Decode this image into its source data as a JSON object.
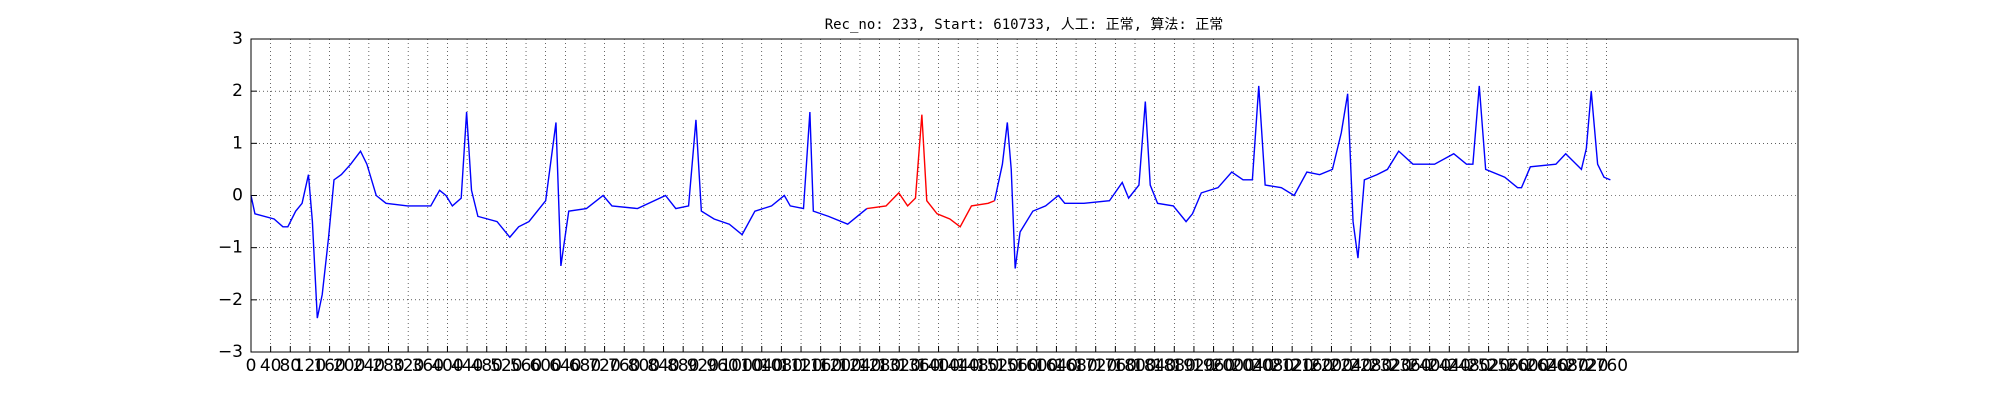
{
  "chart_data": {
    "type": "line",
    "title": "Rec_no: 233, Start: 610733, 人工: 正常, 算法: 正常",
    "x": [
      0,
      8,
      47,
      65,
      75,
      91,
      104,
      117,
      125,
      135,
      145,
      158,
      169,
      184,
      203,
      223,
      236,
      255,
      275,
      319,
      366,
      384,
      397,
      410,
      428,
      439,
      449,
      462,
      501,
      527,
      545,
      566,
      600,
      621,
      631,
      647,
      683,
      717,
      735,
      787,
      844,
      865,
      891,
      906,
      917,
      943,
      974,
      1000,
      1026,
      1060,
      1086,
      1098,
      1125,
      1138,
      1145,
      1176,
      1215,
      1254,
      1293,
      1319,
      1337,
      1353,
      1366,
      1376,
      1397,
      1423,
      1444,
      1467,
      1501,
      1514,
      1530,
      1540,
      1548,
      1556,
      1566,
      1592,
      1618,
      1644,
      1657,
      1696,
      1748,
      1774,
      1787,
      1808,
      1821,
      1831,
      1846,
      1878,
      1904,
      1917,
      1935,
      1969,
      1997,
      2020,
      2039,
      2052,
      2065,
      2098,
      2124,
      2150,
      2176,
      2202,
      2220,
      2233,
      2244,
      2254,
      2267,
      2293,
      2314,
      2337,
      2366,
      2410,
      2449,
      2475,
      2488,
      2501,
      2514,
      2553,
      2579,
      2587,
      2605,
      2657,
      2677,
      2709,
      2719,
      2729,
      2742,
      2755,
      2768
    ],
    "series": [
      {
        "color": "#0000ff",
        "values": [
          0,
          -0.35,
          -0.45,
          -0.6,
          -0.6,
          -0.3,
          -0.15,
          0.4,
          -0.5,
          -2.35,
          -1.9,
          -0.8,
          0.3,
          0.4,
          0.6,
          0.85,
          0.6,
          0,
          -0.15,
          -0.2,
          -0.2,
          0.1,
          0,
          -0.2,
          -0.05,
          1.6,
          0.1,
          -0.4,
          -0.5,
          -0.8,
          -0.6,
          -0.5,
          -0.1,
          1.4,
          -1.35,
          -0.3,
          -0.25,
          0,
          -0.2,
          -0.25,
          0,
          -0.25,
          -0.2,
          1.45,
          -0.3,
          -0.45,
          -0.55,
          -0.75,
          -0.3,
          -0.2,
          0,
          -0.2,
          -0.25,
          1.6,
          -0.3,
          -0.4,
          -0.55,
          -0.25,
          null,
          null,
          null,
          null,
          null,
          null,
          null,
          null,
          null,
          null,
          null,
          -0.1,
          0.6,
          1.4,
          0.5,
          -1.4,
          -0.7,
          -0.3,
          -0.2,
          0,
          -0.15,
          -0.15,
          -0.1,
          0.25,
          -0.05,
          0.2,
          1.8,
          0.2,
          -0.15,
          -0.2,
          -0.5,
          -0.35,
          0.05,
          0.15,
          0.45,
          0.3,
          0.3,
          2.1,
          0.2,
          0.15,
          0,
          0.45,
          0.4,
          0.5,
          1.2,
          1.95,
          -0.5,
          -1.2,
          0.3,
          0.4,
          0.5,
          0.85,
          0.6,
          0.6,
          0.8,
          0.6,
          0.6,
          2.1,
          0.5,
          0.35,
          0.15,
          0.15,
          0.55,
          0.6,
          0.8,
          0.5,
          0.9,
          2.0,
          0.6,
          0.35,
          0.3
        ]
      },
      {
        "color": "#ff0000",
        "values": [
          null,
          null,
          null,
          null,
          null,
          null,
          null,
          null,
          null,
          null,
          null,
          null,
          null,
          null,
          null,
          null,
          null,
          null,
          null,
          null,
          null,
          null,
          null,
          null,
          null,
          null,
          null,
          null,
          null,
          null,
          null,
          null,
          null,
          null,
          null,
          null,
          null,
          null,
          null,
          null,
          null,
          null,
          null,
          null,
          null,
          null,
          null,
          null,
          null,
          null,
          null,
          null,
          null,
          null,
          null,
          null,
          null,
          -0.25,
          -0.2,
          0.05,
          -0.2,
          -0.05,
          1.55,
          -0.1,
          -0.35,
          -0.45,
          -0.6,
          -0.2,
          -0.15,
          -0.1,
          null,
          null,
          null,
          null,
          null,
          null,
          null,
          null,
          null,
          null,
          null,
          null,
          null,
          null,
          null,
          null,
          null,
          null,
          null,
          null,
          null,
          null,
          null,
          null,
          null,
          null,
          null,
          null,
          null,
          null,
          null,
          null,
          null,
          null,
          null,
          null,
          null,
          null,
          null,
          null,
          null,
          null,
          null,
          null,
          null,
          null,
          null,
          null,
          null,
          null,
          null,
          null,
          null,
          null,
          null,
          null,
          null,
          null,
          null
        ]
      }
    ],
    "xlim": [
      0,
      3150
    ],
    "xticks": [
      0,
      40,
      80,
      120,
      160,
      200,
      240,
      280,
      320,
      360,
      400,
      440,
      480,
      520,
      560,
      600,
      640,
      680,
      720,
      760,
      800,
      840,
      880,
      920,
      960,
      1000,
      1040,
      1080,
      1120,
      1160,
      1200,
      1240,
      1280,
      1320,
      1360,
      1400,
      1440,
      1480,
      1520,
      1560,
      1600,
      1640,
      1680,
      1720,
      1760,
      1800,
      1840,
      1880,
      1920,
      1960,
      2000,
      2040,
      2080,
      2120,
      2160,
      2200,
      2240,
      2280,
      2320,
      2360,
      2400,
      2440,
      2480,
      2520,
      2560,
      2600,
      2640,
      2680,
      2720,
      2760
    ],
    "ylim": [
      -3,
      3
    ],
    "yticks": [
      {
        "value": -3,
        "label": "−3"
      },
      {
        "value": -2,
        "label": "−2"
      },
      {
        "value": -1,
        "label": "−1"
      },
      0,
      1,
      2,
      3
    ],
    "grid": true
  }
}
